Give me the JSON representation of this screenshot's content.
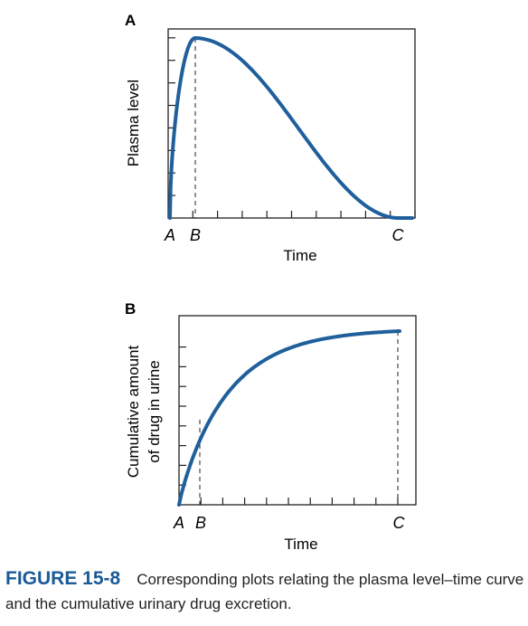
{
  "chart_data": [
    {
      "type": "line",
      "panel": "A",
      "ylabel": "Plasma level",
      "xlabel": "Time",
      "x_marks": [
        "A",
        "B",
        "C"
      ],
      "curve": {
        "color": "#1f5f9c",
        "shape": "rise-to-peak-then-decline"
      },
      "ticks": {
        "x": 10,
        "y": 8
      },
      "dashed_line_at": "B"
    },
    {
      "type": "line",
      "panel": "B",
      "ylabel": [
        "Cumulative amount",
        "of drug in urine"
      ],
      "xlabel": "Time",
      "x_marks": [
        "A",
        "B",
        "C"
      ],
      "curve": {
        "color": "#1f5f9c",
        "shape": "rise-to-plateau"
      },
      "ticks": {
        "x": 10,
        "y": 8
      },
      "dashed_line_at": [
        "B",
        "C"
      ]
    }
  ],
  "caption": {
    "number": "FIGURE 15-8",
    "text": "Corresponding plots relating the plasma level–time curve and the cumulative urinary drug excretion."
  }
}
